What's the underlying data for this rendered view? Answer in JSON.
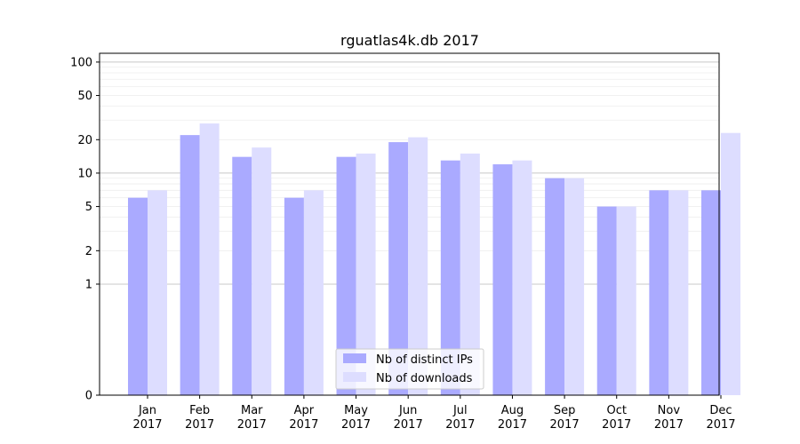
{
  "chart_data": {
    "type": "bar",
    "title": "rguatlas4k.db 2017",
    "xlabel": "",
    "ylabel": "",
    "yscale": "symlog",
    "ylim": [
      0,
      120
    ],
    "yticks": [
      0,
      1,
      2,
      5,
      10,
      20,
      50,
      100
    ],
    "ytick_labels": [
      "0",
      "1",
      "2",
      "5",
      "10",
      "20",
      "50",
      "100"
    ],
    "grid": "horizontal, light gray",
    "categories": [
      "Jan\n2017",
      "Feb\n2017",
      "Mar\n2017",
      "Apr\n2017",
      "May\n2017",
      "Jun\n2017",
      "Jul\n2017",
      "Aug\n2017",
      "Sep\n2017",
      "Oct\n2017",
      "Nov\n2017",
      "Dec\n2017"
    ],
    "series": [
      {
        "name": "Nb of distinct IPs",
        "color": "#aaaaff",
        "values": [
          6,
          22,
          14,
          6,
          14,
          19,
          13,
          12,
          9,
          5,
          7,
          7
        ]
      },
      {
        "name": "Nb of downloads",
        "color": "#ddddff",
        "values": [
          7,
          28,
          17,
          7,
          15,
          21,
          15,
          13,
          9,
          5,
          7,
          23
        ]
      }
    ],
    "legend": {
      "position": "bottom-center"
    }
  }
}
